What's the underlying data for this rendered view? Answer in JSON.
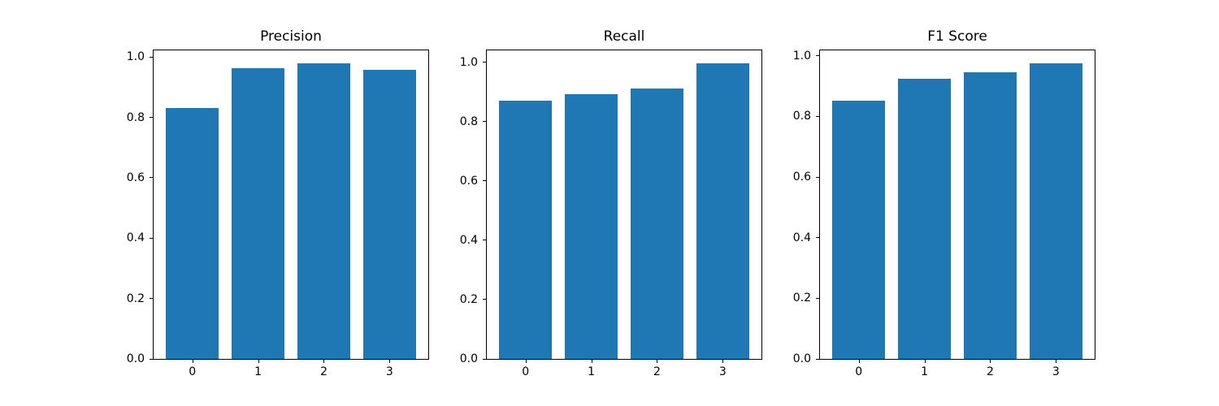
{
  "figure": {
    "background": "#ffffff",
    "bar_color": "#1f77b4",
    "axis_color": "#000000",
    "text_color": "#000000"
  },
  "chart_data": [
    {
      "type": "bar",
      "title": "Precision",
      "categories": [
        "0",
        "1",
        "2",
        "3"
      ],
      "values": [
        0.83,
        0.963,
        0.98,
        0.958
      ],
      "xlabel": "",
      "ylabel": "",
      "ylim": [
        0,
        1.022
      ],
      "yticks": [
        "0.0",
        "0.2",
        "0.4",
        "0.6",
        "0.8",
        "1.0"
      ],
      "ytick_values": [
        0.0,
        0.2,
        0.4,
        0.6,
        0.8,
        1.0
      ],
      "grid": false,
      "legend": null
    },
    {
      "type": "bar",
      "title": "Recall",
      "categories": [
        "0",
        "1",
        "2",
        "3"
      ],
      "values": [
        0.872,
        0.892,
        0.911,
        0.998
      ],
      "xlabel": "",
      "ylabel": "",
      "ylim": [
        0,
        1.041
      ],
      "yticks": [
        "0.0",
        "0.2",
        "0.4",
        "0.6",
        "0.8",
        "1.0"
      ],
      "ytick_values": [
        0.0,
        0.2,
        0.4,
        0.6,
        0.8,
        1.0
      ],
      "grid": false,
      "legend": null
    },
    {
      "type": "bar",
      "title": "F1 Score",
      "categories": [
        "0",
        "1",
        "2",
        "3"
      ],
      "values": [
        0.851,
        0.924,
        0.945,
        0.976
      ],
      "xlabel": "",
      "ylabel": "",
      "ylim": [
        0,
        1.018
      ],
      "yticks": [
        "0.0",
        "0.2",
        "0.4",
        "0.6",
        "0.8",
        "1.0"
      ],
      "ytick_values": [
        0.0,
        0.2,
        0.4,
        0.6,
        0.8,
        1.0
      ],
      "grid": false,
      "legend": null
    }
  ]
}
